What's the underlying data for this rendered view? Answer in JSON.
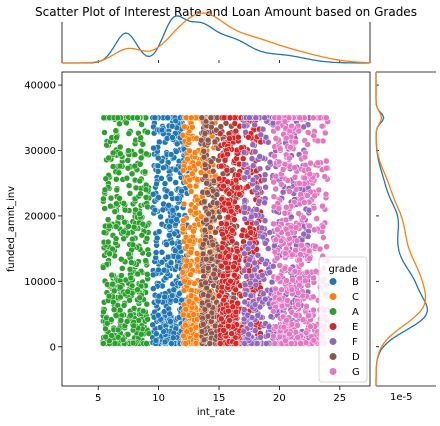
{
  "chart_data": {
    "type": "scatter",
    "title": "Scatter Plot of Interest Rate and Loan Amount based on Grades",
    "xlabel": "int_rate",
    "ylabel": "funded_amnt_inv",
    "xlim": [
      2,
      27.5
    ],
    "ylim": [
      -6000,
      42000
    ],
    "xticks": [
      5,
      10,
      15,
      20,
      25
    ],
    "yticks": [
      0,
      10000,
      20000,
      30000,
      40000
    ],
    "legend_title": "grade",
    "legend_position": "lower-right",
    "marginal_y_scale_label": "1e-5",
    "series": [
      {
        "name": "B",
        "color": "#1f77b4",
        "x_range": [
          9.5,
          12.5
        ],
        "y_max": 35000
      },
      {
        "name": "C",
        "color": "#ff7f0e",
        "x_range": [
          12.0,
          14.8
        ],
        "y_max": 35000
      },
      {
        "name": "A",
        "color": "#2ca02c",
        "x_range": [
          5.4,
          9.2
        ],
        "y_max": 35000
      },
      {
        "name": "E",
        "color": "#d62728",
        "x_range": [
          15.0,
          18.5
        ],
        "y_max": 35000
      },
      {
        "name": "F",
        "color": "#9467bd",
        "x_range": [
          17.0,
          22.5
        ],
        "y_max": 35000
      },
      {
        "name": "D",
        "color": "#8c564b",
        "x_range": [
          13.5,
          16.5
        ],
        "y_max": 35000
      },
      {
        "name": "G",
        "color": "#e377c2",
        "x_range": [
          19.5,
          24.0
        ],
        "y_max": 35000
      }
    ]
  }
}
